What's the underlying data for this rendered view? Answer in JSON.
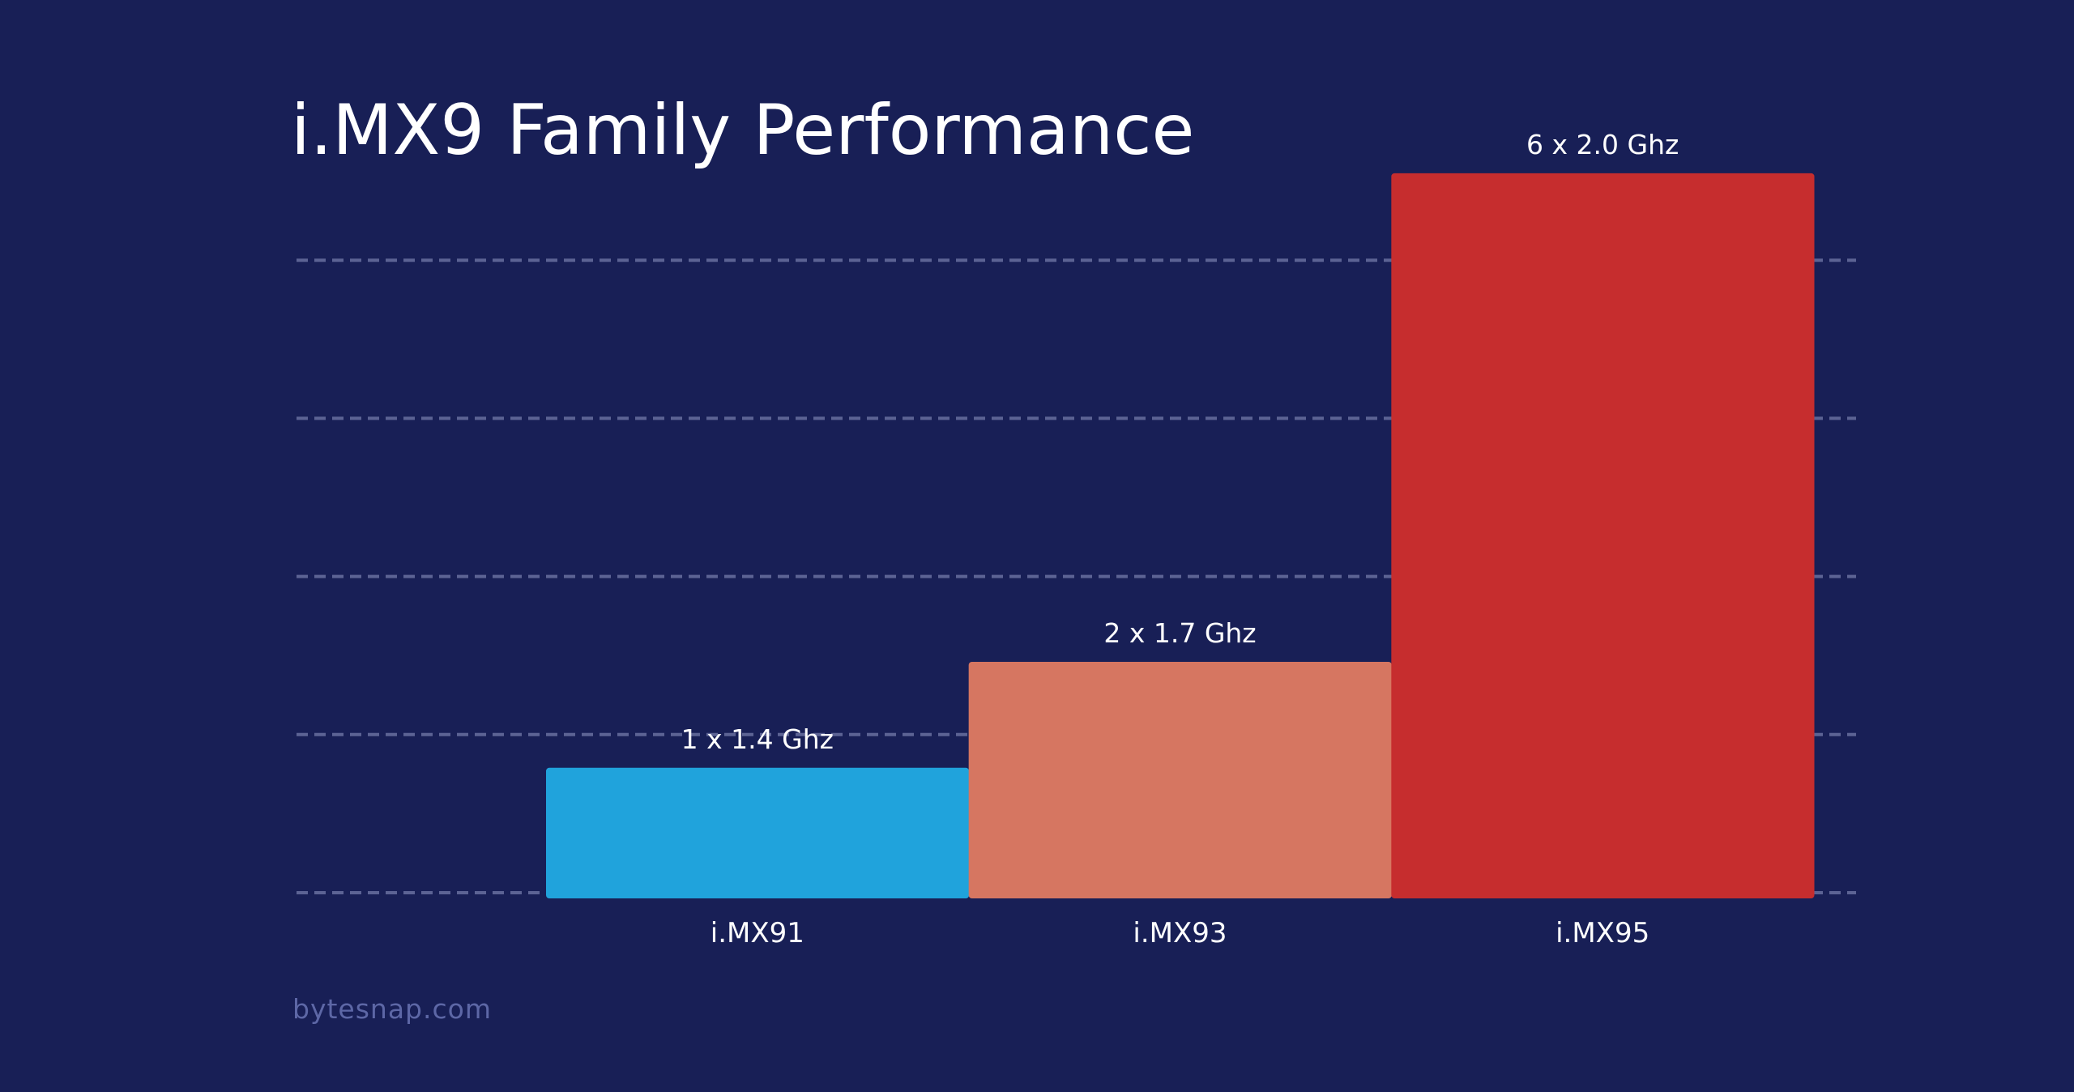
{
  "chart_data": {
    "type": "bar",
    "title": "i.MX9 Family Performance",
    "categories": [
      "i.MX91",
      "i.MX93",
      "i.MX95"
    ],
    "values": [
      0.79,
      1.46,
      4.55
    ],
    "data_labels": [
      "1 x 1.4 Ghz",
      "2 x 1.7 Ghz",
      "6 x 2.0 Ghz"
    ],
    "colors": [
      "#20a3dc",
      "#d67661",
      "#c62d2e"
    ],
    "ylim": [
      0,
      5
    ],
    "yticks": [
      0,
      1,
      2,
      3,
      4
    ],
    "grid": true
  },
  "footer": "bytesnap.com"
}
